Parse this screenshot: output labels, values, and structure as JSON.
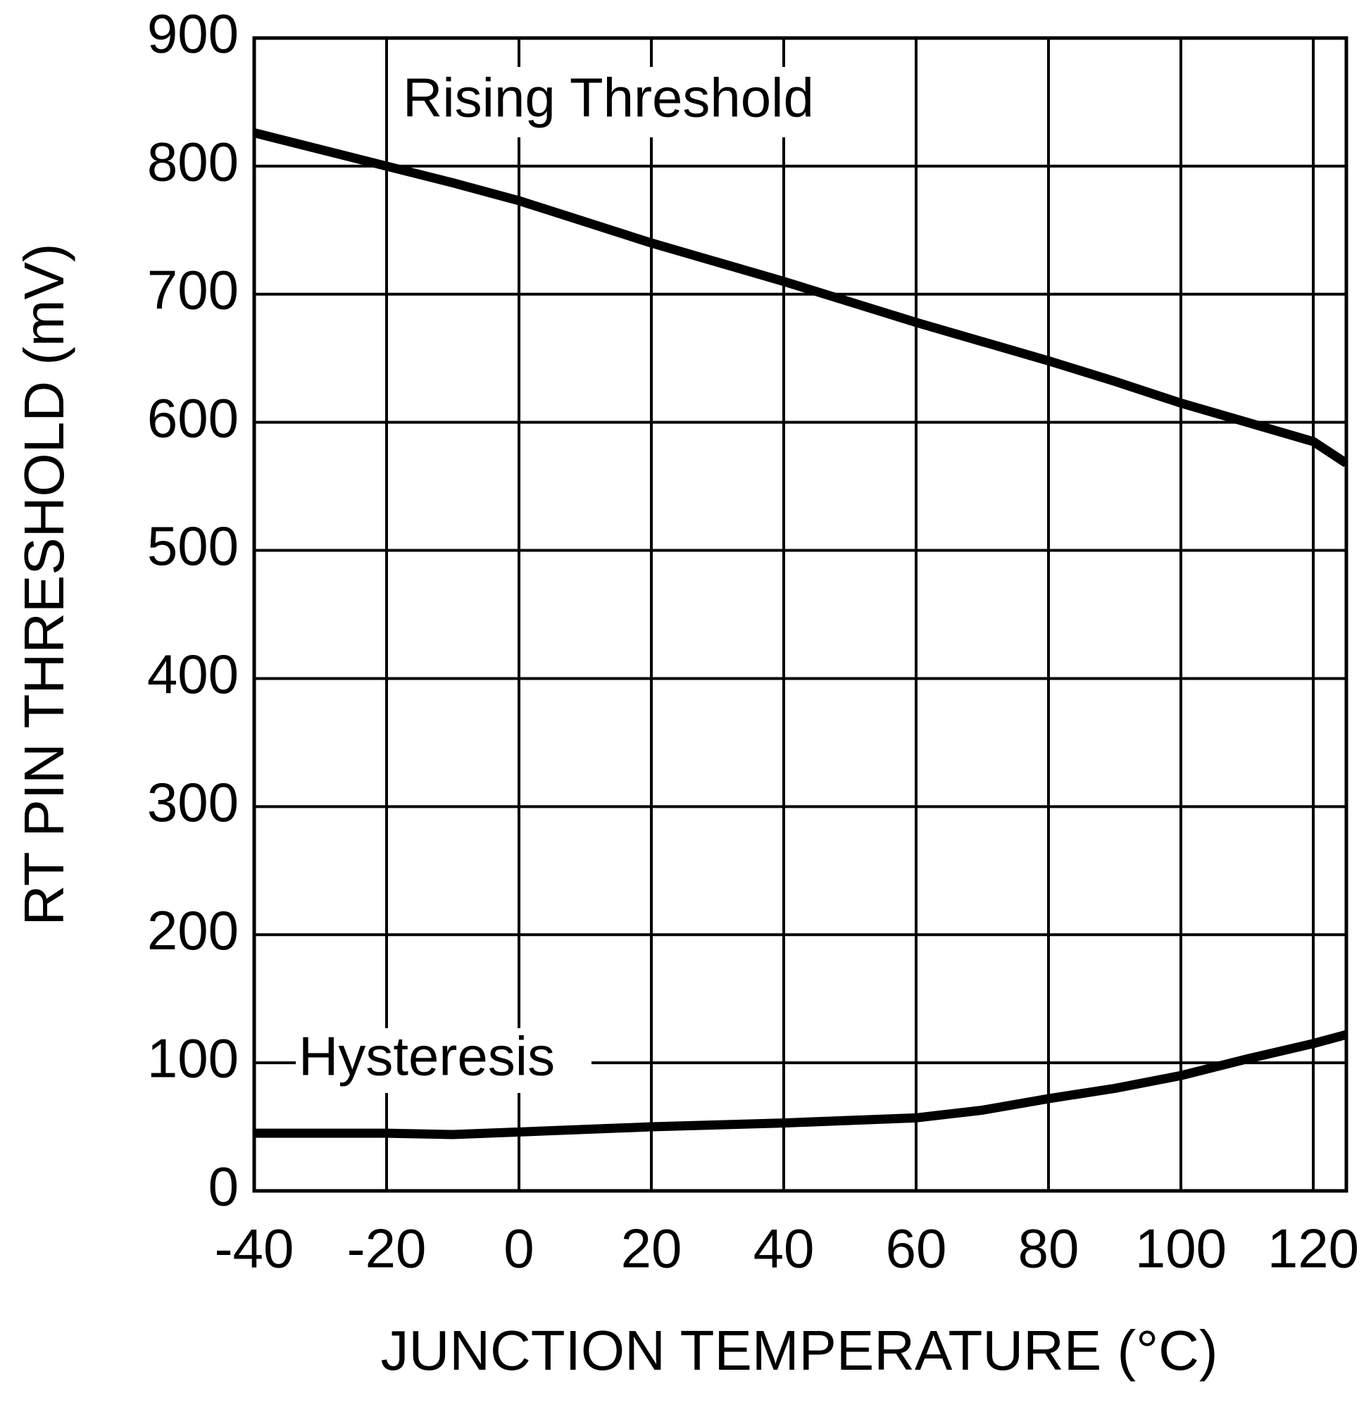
{
  "chart_data": {
    "type": "line",
    "xlabel": "JUNCTION TEMPERATURE (°C)",
    "ylabel": "RT PIN THRESHOLD (mV)",
    "x": [
      -40,
      -20,
      -10,
      0,
      20,
      40,
      60,
      70,
      80,
      90,
      100,
      110,
      120,
      125
    ],
    "series": [
      {
        "name": "Rising Threshold",
        "color": "#000000",
        "values": [
          826,
          800,
          787,
          773,
          740,
          710,
          678,
          663,
          648,
          632,
          615,
          600,
          585,
          568
        ]
      },
      {
        "name": "Hysteresis",
        "color": "#000000",
        "values": [
          45,
          45,
          44,
          46,
          50,
          53,
          57,
          63,
          72,
          80,
          90,
          103,
          115,
          122
        ]
      }
    ],
    "xlim": [
      -40,
      125
    ],
    "xticks": [
      -40,
      -20,
      0,
      20,
      40,
      60,
      80,
      100,
      120
    ],
    "ylim": [
      0,
      900
    ],
    "yticks": [
      0,
      100,
      200,
      300,
      400,
      500,
      600,
      700,
      800,
      900
    ],
    "grid": true
  }
}
